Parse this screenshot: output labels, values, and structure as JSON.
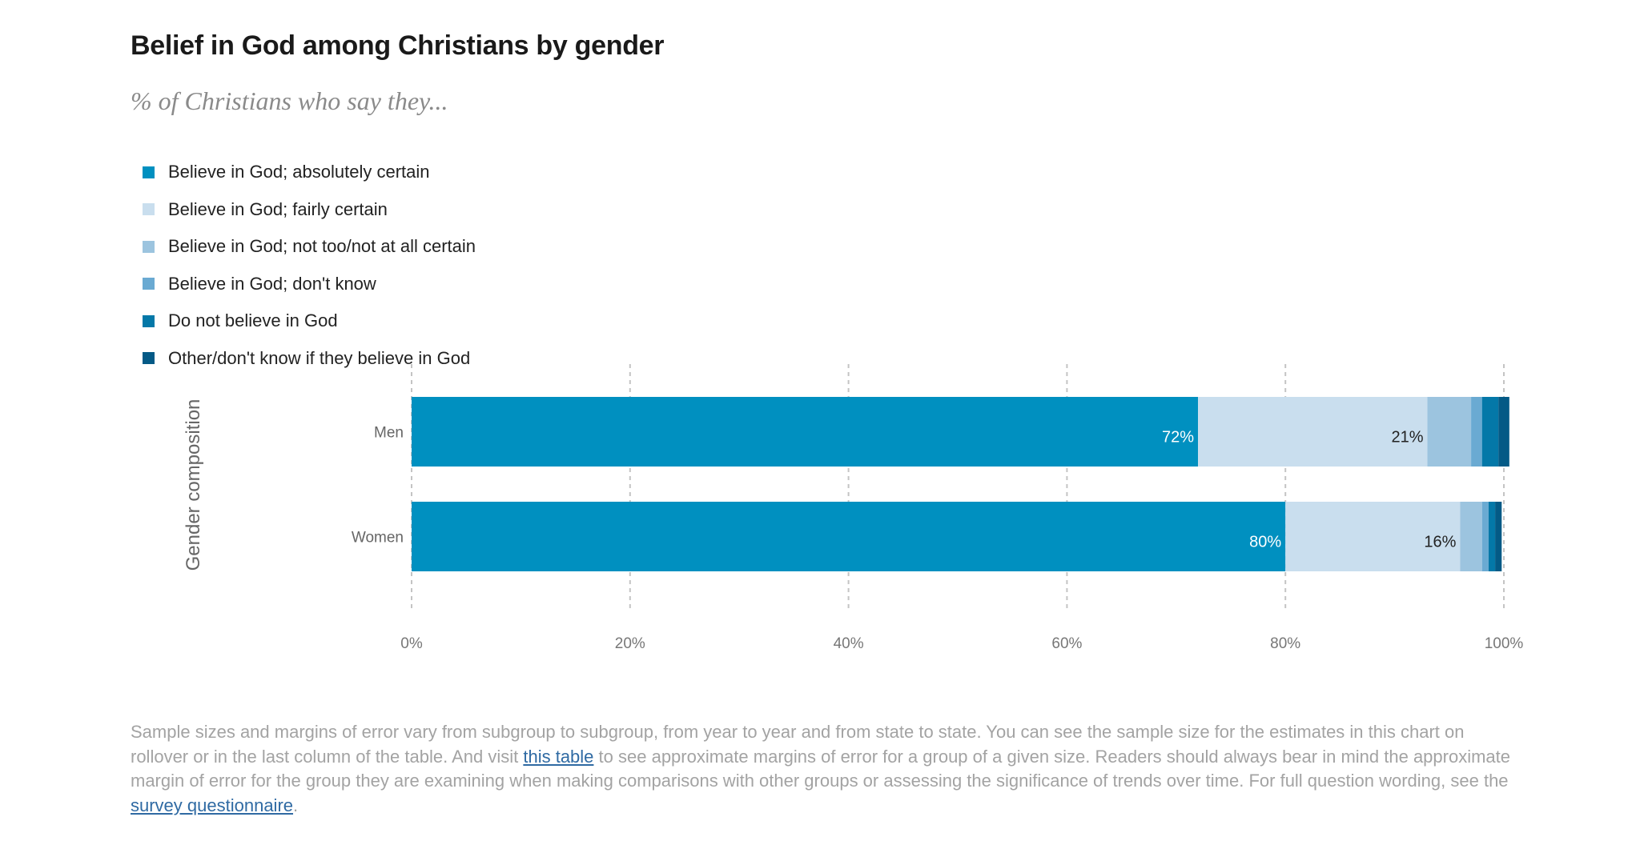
{
  "chart_data": {
    "type": "bar",
    "orientation": "horizontal",
    "stacked": true,
    "title": "Belief in God among Christians by gender",
    "subtitle": "% of Christians who say they...",
    "ylabel": "Gender composition",
    "categories": [
      "Men",
      "Women"
    ],
    "xlim": [
      0,
      100
    ],
    "xticks": [
      0,
      20,
      40,
      60,
      80,
      100
    ],
    "xtick_labels": [
      "0%",
      "20%",
      "40%",
      "60%",
      "80%",
      "100%"
    ],
    "grid": true,
    "legend_position": "top-left",
    "series": [
      {
        "name": "Believe in God; absolutely certain",
        "color": "#0090c0",
        "values": [
          72,
          80
        ],
        "labels": [
          "72%",
          "80%"
        ],
        "label_color": "#ffffff"
      },
      {
        "name": "Believe in God; fairly certain",
        "color": "#c9deee",
        "values": [
          21,
          16
        ],
        "labels": [
          "21%",
          "16%"
        ],
        "label_color": "#222222"
      },
      {
        "name": "Believe in God; not too/not at all certain",
        "color": "#9cc4df",
        "values": [
          4,
          2
        ],
        "labels": [],
        "label_color": "#222222"
      },
      {
        "name": "Believe in God; don't know",
        "color": "#6aaad2",
        "values": [
          1,
          0.6
        ],
        "labels": [],
        "label_color": "#222222"
      },
      {
        "name": "Do not believe in God",
        "color": "#0478a8",
        "values": [
          1.5,
          0.6
        ],
        "labels": [],
        "label_color": "#ffffff"
      },
      {
        "name": "Other/don't know if they believe in God",
        "color": "#045a86",
        "values": [
          1,
          0.6
        ],
        "labels": [],
        "label_color": "#ffffff"
      }
    ]
  },
  "footnote": {
    "text_1": "Sample sizes and margins of error vary from subgroup to subgroup, from year to year and from state to state. You can see the sample size for the estimates in this chart on rollover or in the last column of the table. And visit ",
    "link_1": "this table",
    "text_2": " to see approximate margins of error for a group of a given size. Readers should always bear in mind the approximate margin of error for the group they are examining when making comparisons with other groups or assessing the significance of trends over time. For full question wording, see the ",
    "link_2": "survey questionnaire",
    "text_3": "."
  }
}
